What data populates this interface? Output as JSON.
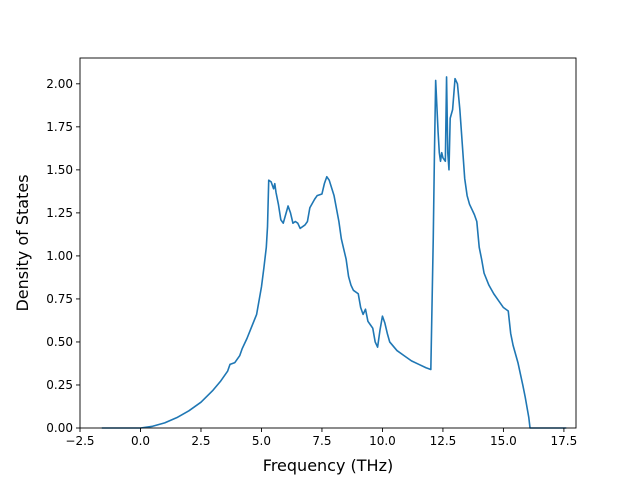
{
  "chart_data": {
    "type": "line",
    "title": "",
    "xlabel": "Frequency (THz)",
    "ylabel": "Density of States",
    "xlim": [
      -2.5,
      18.0
    ],
    "ylim": [
      0.0,
      2.15
    ],
    "x_ticks": [
      -2.5,
      0.0,
      2.5,
      5.0,
      7.5,
      10.0,
      12.5,
      15.0,
      17.5
    ],
    "x_tick_labels": [
      "−2.5",
      "0.0",
      "2.5",
      "5.0",
      "7.5",
      "10.0",
      "12.5",
      "15.0",
      "17.5"
    ],
    "y_ticks": [
      0.0,
      0.25,
      0.5,
      0.75,
      1.0,
      1.25,
      1.5,
      1.75,
      2.0
    ],
    "y_tick_labels": [
      "0.00",
      "0.25",
      "0.50",
      "0.75",
      "1.00",
      "1.25",
      "1.50",
      "1.75",
      "2.00"
    ],
    "grid": false,
    "series": [
      {
        "color": "#1f77b4",
        "x": [
          -1.6,
          -0.5,
          0.0,
          0.5,
          1.0,
          1.5,
          2.0,
          2.5,
          3.0,
          3.3,
          3.6,
          3.7,
          3.9,
          4.1,
          4.2,
          4.4,
          4.6,
          4.8,
          5.0,
          5.1,
          5.2,
          5.25,
          5.3,
          5.4,
          5.5,
          5.55,
          5.6,
          5.7,
          5.8,
          5.9,
          6.0,
          6.1,
          6.2,
          6.3,
          6.4,
          6.5,
          6.6,
          6.8,
          6.9,
          7.0,
          7.2,
          7.3,
          7.5,
          7.6,
          7.7,
          7.8,
          8.0,
          8.2,
          8.3,
          8.4,
          8.5,
          8.6,
          8.7,
          8.8,
          9.0,
          9.1,
          9.2,
          9.3,
          9.4,
          9.5,
          9.6,
          9.7,
          9.8,
          9.9,
          10.0,
          10.1,
          10.2,
          10.3,
          10.6,
          10.9,
          11.2,
          11.5,
          11.8,
          12.0,
          12.1,
          12.15,
          12.2,
          12.3,
          12.35,
          12.4,
          12.45,
          12.5,
          12.6,
          12.65,
          12.7,
          12.75,
          12.8,
          12.9,
          13.0,
          13.1,
          13.2,
          13.3,
          13.4,
          13.5,
          13.6,
          13.7,
          13.8,
          13.9,
          14.0,
          14.1,
          14.2,
          14.4,
          14.6,
          14.8,
          15.0,
          15.2,
          15.3,
          15.4,
          15.6,
          15.8,
          15.9,
          16.0,
          16.05,
          16.1,
          16.2,
          17.0,
          17.6
        ],
        "y": [
          0.0,
          0.0,
          0.0,
          0.01,
          0.03,
          0.06,
          0.1,
          0.15,
          0.22,
          0.27,
          0.33,
          0.37,
          0.38,
          0.42,
          0.46,
          0.52,
          0.59,
          0.66,
          0.82,
          0.93,
          1.05,
          1.17,
          1.44,
          1.43,
          1.39,
          1.42,
          1.37,
          1.3,
          1.21,
          1.19,
          1.24,
          1.29,
          1.25,
          1.19,
          1.2,
          1.19,
          1.16,
          1.18,
          1.2,
          1.28,
          1.33,
          1.35,
          1.36,
          1.42,
          1.46,
          1.44,
          1.35,
          1.2,
          1.1,
          1.04,
          0.98,
          0.88,
          0.83,
          0.8,
          0.78,
          0.7,
          0.66,
          0.69,
          0.62,
          0.6,
          0.58,
          0.5,
          0.47,
          0.57,
          0.65,
          0.61,
          0.55,
          0.5,
          0.45,
          0.42,
          0.39,
          0.37,
          0.35,
          0.34,
          1.1,
          1.6,
          2.02,
          1.72,
          1.6,
          1.55,
          1.6,
          1.57,
          1.55,
          2.04,
          1.6,
          1.5,
          1.8,
          1.85,
          2.03,
          2.0,
          1.85,
          1.65,
          1.45,
          1.35,
          1.3,
          1.27,
          1.24,
          1.2,
          1.05,
          0.98,
          0.9,
          0.83,
          0.78,
          0.74,
          0.7,
          0.68,
          0.55,
          0.48,
          0.38,
          0.25,
          0.18,
          0.1,
          0.06,
          0.0,
          0.0,
          0.0,
          0.0
        ]
      }
    ]
  }
}
